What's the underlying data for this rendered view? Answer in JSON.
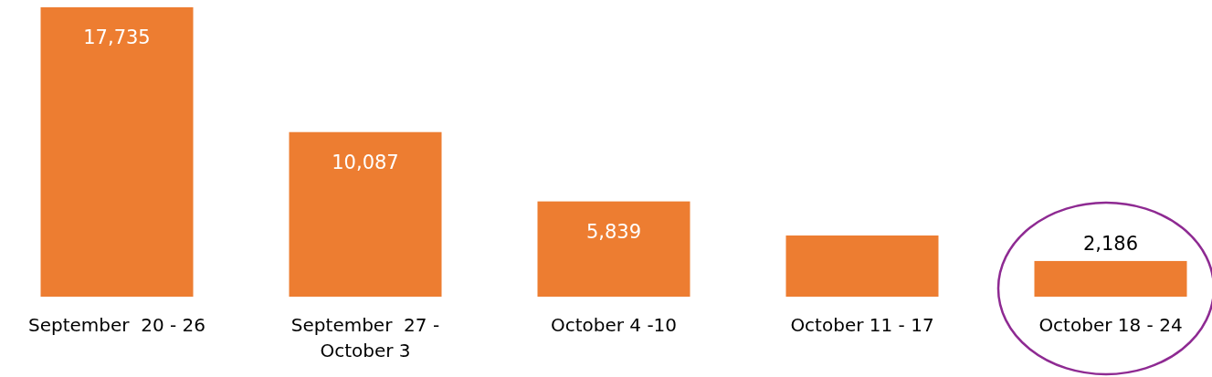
{
  "chart_data": {
    "type": "bar",
    "categories": [
      "September  20 - 26",
      "September  27 - October 3",
      "October 4 -10",
      "October 11 - 17",
      "October 18 - 24"
    ],
    "values": [
      17735,
      10087,
      5839,
      3750,
      2186
    ],
    "value_labels": [
      "17,735",
      "10,087",
      "5,839",
      null,
      "2,186"
    ],
    "color": "#ed7d31"
  }
}
